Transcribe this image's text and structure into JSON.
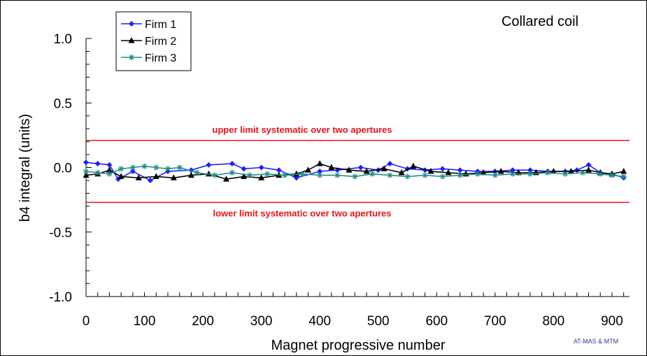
{
  "chart_data": {
    "type": "line",
    "title": "Collared coil",
    "xlabel": "Magnet progressive number",
    "ylabel": "b4 integral (units)",
    "xlim": [
      0,
      930
    ],
    "ylim": [
      -1.0,
      1.0
    ],
    "x_ticks": [
      0,
      100,
      200,
      300,
      400,
      500,
      600,
      700,
      800,
      900
    ],
    "x_tick_labels": [
      "0",
      "100",
      "200",
      "300",
      "400",
      "500",
      "600",
      "700",
      "800",
      "900"
    ],
    "y_ticks": [
      1.0,
      0.5,
      0.0,
      -0.5,
      -1.0
    ],
    "y_tick_labels": [
      "1.0",
      "0.5",
      "0.0",
      "-0.5",
      "-1.0"
    ],
    "grid": false,
    "legend_position": "top-left",
    "credit": "AT-MAS & MTM",
    "limits": [
      {
        "label": "upper limit systematic over two apertures",
        "value": 0.21,
        "color": "#e8141a"
      },
      {
        "label": "lower limit systematic over two apertures",
        "value": -0.27,
        "color": "#e8141a"
      }
    ],
    "series": [
      {
        "name": "Firm 1",
        "color": "#1f1fff",
        "marker": "diamond",
        "points": [
          [
            0,
            0.04
          ],
          [
            20,
            0.03
          ],
          [
            40,
            0.02
          ],
          [
            55,
            -0.09
          ],
          [
            80,
            -0.03
          ],
          [
            110,
            -0.1
          ],
          [
            140,
            -0.03
          ],
          [
            180,
            -0.02
          ],
          [
            210,
            0.02
          ],
          [
            250,
            0.03
          ],
          [
            270,
            -0.01
          ],
          [
            300,
            0.0
          ],
          [
            330,
            -0.02
          ],
          [
            360,
            -0.08
          ],
          [
            400,
            -0.03
          ],
          [
            430,
            -0.02
          ],
          [
            470,
            0.0
          ],
          [
            500,
            -0.02
          ],
          [
            520,
            0.03
          ],
          [
            550,
            -0.01
          ],
          [
            580,
            -0.02
          ],
          [
            610,
            -0.01
          ],
          [
            640,
            -0.02
          ],
          [
            670,
            -0.03
          ],
          [
            700,
            -0.03
          ],
          [
            730,
            -0.02
          ],
          [
            760,
            -0.02
          ],
          [
            790,
            -0.03
          ],
          [
            820,
            -0.03
          ],
          [
            840,
            -0.02
          ],
          [
            860,
            0.02
          ],
          [
            880,
            -0.04
          ],
          [
            900,
            -0.05
          ],
          [
            920,
            -0.08
          ]
        ]
      },
      {
        "name": "Firm 2",
        "color": "#000000",
        "marker": "triangle",
        "points": [
          [
            0,
            -0.06
          ],
          [
            20,
            -0.05
          ],
          [
            40,
            -0.02
          ],
          [
            60,
            -0.07
          ],
          [
            90,
            -0.08
          ],
          [
            120,
            -0.07
          ],
          [
            150,
            -0.08
          ],
          [
            180,
            -0.06
          ],
          [
            210,
            -0.05
          ],
          [
            240,
            -0.09
          ],
          [
            270,
            -0.07
          ],
          [
            300,
            -0.08
          ],
          [
            330,
            -0.06
          ],
          [
            360,
            -0.05
          ],
          [
            380,
            -0.02
          ],
          [
            400,
            0.03
          ],
          [
            420,
            0.0
          ],
          [
            450,
            -0.02
          ],
          [
            480,
            -0.03
          ],
          [
            510,
            -0.01
          ],
          [
            540,
            -0.04
          ],
          [
            560,
            0.01
          ],
          [
            590,
            -0.03
          ],
          [
            620,
            -0.04
          ],
          [
            650,
            -0.05
          ],
          [
            680,
            -0.04
          ],
          [
            710,
            -0.03
          ],
          [
            740,
            -0.04
          ],
          [
            770,
            -0.04
          ],
          [
            800,
            -0.03
          ],
          [
            830,
            -0.03
          ],
          [
            860,
            -0.02
          ],
          [
            880,
            -0.04
          ],
          [
            900,
            -0.05
          ],
          [
            920,
            -0.03
          ]
        ]
      },
      {
        "name": "Firm 3",
        "color": "#1f8f8a",
        "marker": "star",
        "points": [
          [
            0,
            -0.03
          ],
          [
            20,
            -0.04
          ],
          [
            40,
            -0.05
          ],
          [
            60,
            -0.01
          ],
          [
            80,
            0.0
          ],
          [
            100,
            0.01
          ],
          [
            120,
            0.0
          ],
          [
            140,
            -0.01
          ],
          [
            160,
            0.0
          ],
          [
            190,
            -0.04
          ],
          [
            220,
            -0.06
          ],
          [
            250,
            -0.04
          ],
          [
            280,
            -0.06
          ],
          [
            310,
            -0.05
          ],
          [
            340,
            -0.06
          ],
          [
            370,
            -0.05
          ],
          [
            400,
            -0.06
          ],
          [
            430,
            -0.06
          ],
          [
            460,
            -0.07
          ],
          [
            490,
            -0.05
          ],
          [
            520,
            -0.06
          ],
          [
            550,
            -0.07
          ],
          [
            580,
            -0.06
          ],
          [
            610,
            -0.07
          ],
          [
            640,
            -0.06
          ],
          [
            670,
            -0.05
          ],
          [
            700,
            -0.06
          ],
          [
            730,
            -0.05
          ],
          [
            760,
            -0.05
          ],
          [
            790,
            -0.04
          ],
          [
            820,
            -0.05
          ],
          [
            850,
            -0.04
          ],
          [
            880,
            -0.05
          ],
          [
            900,
            -0.06
          ],
          [
            920,
            -0.07
          ]
        ]
      }
    ]
  }
}
